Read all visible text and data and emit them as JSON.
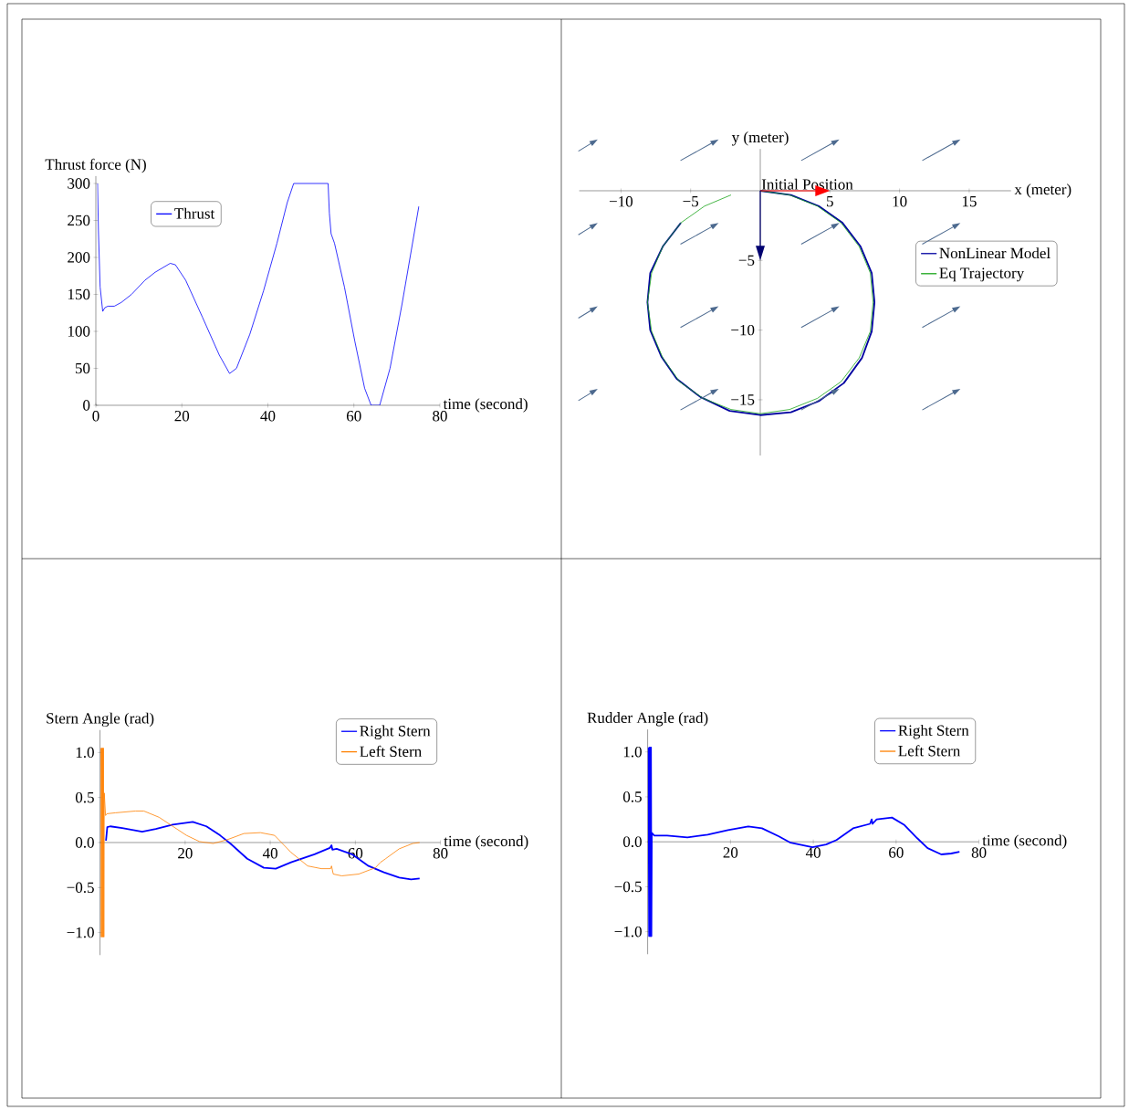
{
  "chart_data": [
    {
      "type": "line",
      "xlabel": "time (second)",
      "ylabel": "Thrust force (N)",
      "xlim": [
        0,
        80
      ],
      "ylim": [
        0,
        310
      ],
      "xticks": [
        0,
        20,
        40,
        60,
        80
      ],
      "yticks": [
        0,
        50,
        100,
        150,
        200,
        250,
        300
      ],
      "legend": "top left",
      "series": [
        {
          "name": "Thrust",
          "color": "#0000ff",
          "x": [
            0.4,
            0.6,
            1.0,
            1.6,
            2.1,
            2.8,
            4.3,
            5.9,
            8.3,
            11.4,
            13.8,
            17.3,
            18.5,
            20.9,
            24.8,
            28.7,
            31.1,
            32.7,
            35.8,
            39,
            42.1,
            44.5,
            46,
            54,
            54.3,
            54.7,
            55.5,
            57.8,
            60.2,
            62.5,
            64,
            66,
            68.4,
            71.2,
            75.1
          ],
          "values": [
            300,
            237,
            160,
            127,
            132,
            134,
            134,
            139,
            150,
            169,
            180,
            192,
            190,
            169,
            119,
            68,
            43,
            50,
            96,
            155,
            219,
            274,
            300,
            300,
            260,
            232,
            219,
            160,
            87,
            23,
            0,
            0,
            50,
            137,
            269
          ]
        }
      ]
    },
    {
      "type": "line",
      "xlabel": "x (meter)",
      "ylabel": "y (meter)",
      "xlim": [
        -13,
        18
      ],
      "ylim": [
        -19,
        3
      ],
      "xticks": [
        {
          "value": -10,
          "label": "−10"
        },
        {
          "value": -5,
          "label": "−5"
        },
        5,
        10,
        15
      ],
      "yticks": [
        {
          "value": -15,
          "label": "−15"
        },
        {
          "value": -10,
          "label": "−10"
        },
        {
          "value": -5,
          "label": "−5"
        }
      ],
      "legend": "right",
      "annotations": [
        {
          "text": "Initial Position",
          "x": 0,
          "y": 0
        }
      ],
      "series": [
        {
          "name": "NonLinear Model",
          "color": "#0000a0",
          "x": [
            0,
            2.2,
            4.2,
            5.9,
            7.2,
            8.0,
            8.2,
            8.0,
            7.3,
            6.0,
            4.2,
            2.2,
            0,
            -2.2,
            -4.3,
            -6.0,
            -7.1,
            -7.9,
            -8.1,
            -7.9,
            -7.0,
            -5.7
          ],
          "values": [
            0,
            -0.3,
            -1.1,
            -2.3,
            -4.0,
            -5.9,
            -8.0,
            -10.1,
            -12.0,
            -13.8,
            -15.1,
            -15.9,
            -16.1,
            -15.8,
            -14.8,
            -13.5,
            -11.9,
            -10.0,
            -8.0,
            -5.9,
            -4.0,
            -2.3
          ]
        },
        {
          "name": "Eq Trajectory",
          "color": "#1aa51a",
          "x": [
            0,
            2.1,
            4.1,
            5.8,
            7.1,
            7.9,
            8.1,
            7.9,
            7.1,
            5.8,
            4.1,
            2.1,
            0,
            -2.1,
            -4.1,
            -5.8,
            -7.0,
            -7.8,
            -8.1,
            -7.8,
            -7.0,
            -5.7,
            -4.0,
            -2.1
          ],
          "values": [
            0,
            -0.3,
            -1.1,
            -2.3,
            -4.0,
            -5.9,
            -8.0,
            -10.1,
            -12.0,
            -13.7,
            -14.9,
            -15.7,
            -16,
            -15.7,
            -14.9,
            -13.7,
            -12.0,
            -10.1,
            -8.0,
            -5.9,
            -4.0,
            -2.3,
            -1.1,
            -0.3
          ]
        }
      ]
    },
    {
      "type": "line",
      "xlabel": "time (second)",
      "ylabel": "Stern Angle (rad)",
      "xlim": [
        0,
        80
      ],
      "ylim": [
        -1.25,
        1.25
      ],
      "xticks": [
        20,
        40,
        60,
        80
      ],
      "yticks": [
        {
          "value": -1,
          "label": "−1.0"
        },
        {
          "value": -0.5,
          "label": "−0.5"
        },
        {
          "value": 0,
          "label": "0.0"
        },
        {
          "value": 0.5,
          "label": "0.5"
        },
        {
          "value": 1,
          "label": "1.0"
        }
      ],
      "legend": "top right",
      "series": [
        {
          "name": "Right Stern",
          "color": "#0000ff",
          "x": [
            1.4,
            1.7,
            2.4,
            5.2,
            9.9,
            13.1,
            17.1,
            21.8,
            25,
            28.2,
            30.6,
            34.6,
            38.5,
            41.3,
            44.9,
            50.4,
            54,
            54.4,
            54.6,
            55.6,
            59.2,
            63.1,
            66.7,
            70.3,
            73.1,
            75.1
          ],
          "values": [
            0.02,
            0.17,
            0.18,
            0.16,
            0.12,
            0.15,
            0.2,
            0.23,
            0.18,
            0.08,
            -0.01,
            -0.18,
            -0.28,
            -0.29,
            -0.22,
            -0.13,
            -0.06,
            -0.03,
            -0.08,
            -0.07,
            -0.13,
            -0.26,
            -0.33,
            -0.39,
            -0.41,
            -0.4
          ]
        },
        {
          "name": "Left Stern",
          "color": "#ff8000",
          "x": [
            0.2,
            0.3,
            0.4,
            0.5,
            0.6,
            0.7,
            0.8,
            0.9,
            1.0,
            1.3,
            1.6,
            3.6,
            8.3,
            10.3,
            13.9,
            17.1,
            20.3,
            23.4,
            26.6,
            29.8,
            33.8,
            37.7,
            41,
            44.9,
            48.8,
            52,
            54.2,
            54.4,
            54.8,
            56.8,
            60.8,
            64.7,
            65.9,
            67.1,
            70.3,
            73.5,
            75.1
          ],
          "values": [
            1.05,
            -1.05,
            1.05,
            -1.05,
            1.05,
            -1.05,
            1.05,
            -1.05,
            0.55,
            0.3,
            0.32,
            0.33,
            0.35,
            0.35,
            0.28,
            0.18,
            0.08,
            0.01,
            -0.01,
            0.03,
            0.1,
            0.11,
            0.08,
            -0.11,
            -0.26,
            -0.29,
            -0.29,
            -0.26,
            -0.35,
            -0.37,
            -0.35,
            -0.28,
            -0.22,
            -0.18,
            -0.07,
            -0.01,
            0
          ]
        }
      ]
    },
    {
      "type": "line",
      "xlabel": "time (second)",
      "ylabel": "Rudder Angle (rad)",
      "xlim": [
        0,
        80
      ],
      "ylim": [
        -1.25,
        1.25
      ],
      "xticks": [
        20,
        40,
        60,
        80
      ],
      "yticks": [
        {
          "value": -1,
          "label": "−1.0"
        },
        {
          "value": -0.5,
          "label": "−0.5"
        },
        {
          "value": 0,
          "label": "0.0"
        },
        {
          "value": 0.5,
          "label": "0.5"
        },
        {
          "value": 1,
          "label": "1.0"
        }
      ],
      "legend": "top right",
      "series": [
        {
          "name": "Right Stern",
          "color": "#0000ff",
          "x": [
            0.2,
            0.35,
            0.5,
            0.65,
            0.8,
            0.9,
            1.0,
            1.6,
            4.7,
            9.6,
            14.5,
            19.4,
            24.3,
            27.6,
            31.7,
            34.5,
            39.8,
            43.1,
            45.6,
            49.6,
            53.7,
            54.1,
            54.3,
            55.3,
            59,
            61.9,
            65.1,
            67.6,
            70.9,
            73.3,
            75.3
          ],
          "values": [
            1.05,
            -1.05,
            1.05,
            -1.05,
            1.05,
            -1.05,
            0.1,
            0.07,
            0.07,
            0.05,
            0.08,
            0.13,
            0.17,
            0.15,
            0.06,
            -0.01,
            -0.06,
            -0.03,
            0.02,
            0.15,
            0.2,
            0.25,
            0.2,
            0.25,
            0.27,
            0.19,
            0.04,
            -0.07,
            -0.14,
            -0.13,
            -0.11
          ]
        },
        {
          "name": "Left Stern",
          "color": "#ff8000",
          "values": [
            null
          ]
        }
      ]
    }
  ]
}
